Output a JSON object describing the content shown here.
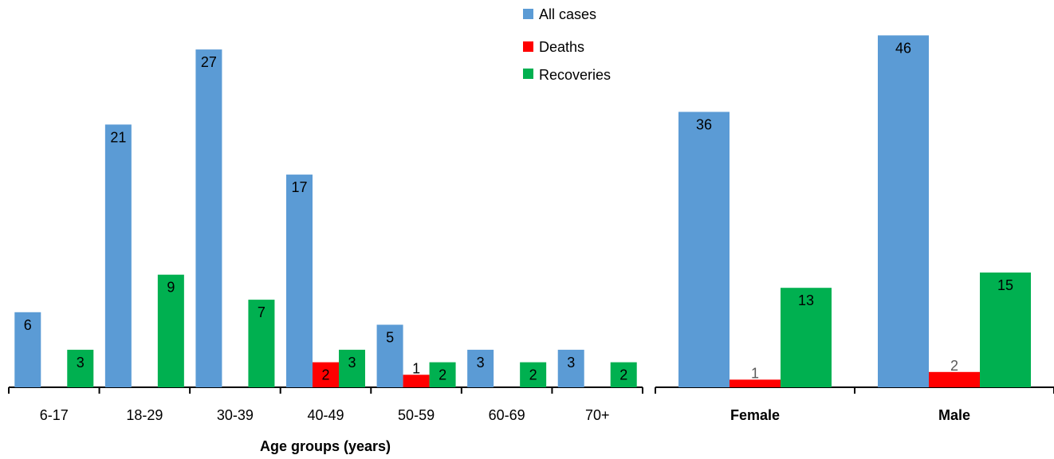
{
  "chart_data": [
    {
      "type": "bar",
      "xlabel": "Age groups (years)",
      "ylabel": "",
      "categories": [
        "6-17",
        "18-29",
        "30-39",
        "40-49",
        "50-59",
        "60-69",
        "70+"
      ],
      "series": [
        {
          "name": "All cases",
          "color": "#5B9BD5",
          "values": [
            6,
            21,
            27,
            17,
            5,
            3,
            3
          ]
        },
        {
          "name": "Deaths",
          "color": "#FF0000",
          "values": [
            0,
            0,
            0,
            2,
            1,
            0,
            0
          ]
        },
        {
          "name": "Recoveries",
          "color": "#00B050",
          "values": [
            3,
            9,
            7,
            3,
            2,
            2,
            2
          ]
        }
      ],
      "legend": "top-center",
      "grid": false
    },
    {
      "type": "bar",
      "xlabel": "",
      "ylabel": "",
      "categories": [
        "Female",
        "Male"
      ],
      "series": [
        {
          "name": "All cases",
          "color": "#5B9BD5",
          "values": [
            36,
            46
          ]
        },
        {
          "name": "Deaths",
          "color": "#FF0000",
          "values": [
            1,
            2
          ]
        },
        {
          "name": "Recoveries",
          "color": "#00B050",
          "values": [
            13,
            15
          ]
        }
      ],
      "grid": false
    }
  ]
}
